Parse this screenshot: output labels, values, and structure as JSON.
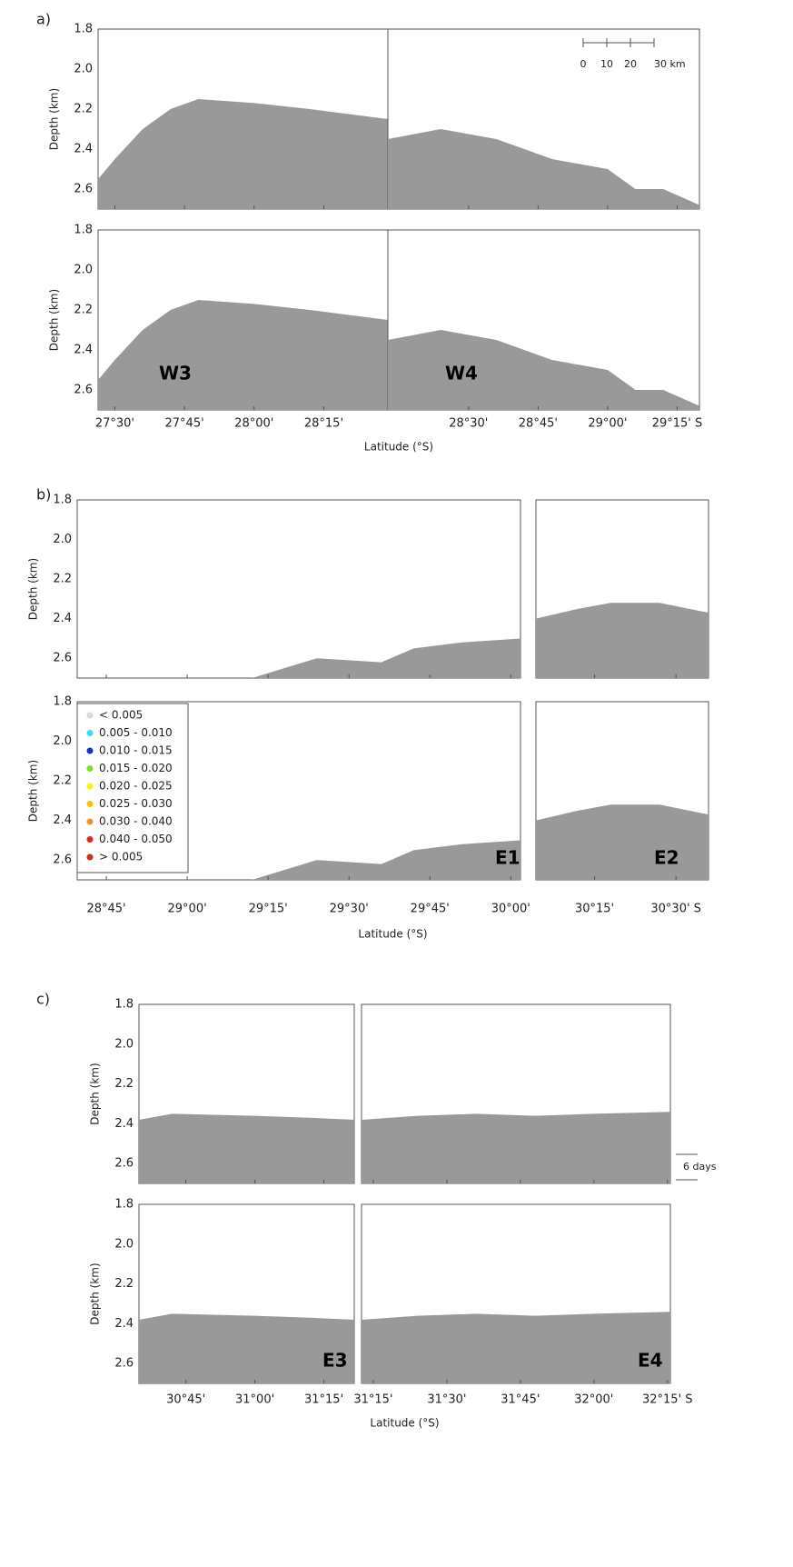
{
  "chart_data": [
    {
      "type": "area",
      "panel_label": "a)",
      "ylabel": "Depth (km)",
      "xlabel": "Latitude (°S)",
      "ylim": [
        1.8,
        2.7
      ],
      "y_inverted": true,
      "yticks": [
        1.8,
        {
          "value": 2,
          "label": "2.0"
        },
        2.2,
        2.4,
        2.6
      ],
      "seafloor_color": "#999999",
      "scale_bar": [
        "0",
        "10",
        "20",
        "30 km"
      ],
      "segments": [
        {
          "xlim": [
            27.44,
            28.48
          ],
          "xticks": [
            {
              "value": 27.5,
              "label": "27°30'"
            },
            {
              "value": 27.75,
              "label": "27°45'"
            },
            {
              "value": 28.0,
              "label": "28°00'"
            },
            {
              "value": 28.25,
              "label": "28°15'"
            }
          ],
          "seafloor_x": [
            27.44,
            27.5,
            27.6,
            27.7,
            27.8,
            28.0,
            28.2,
            28.48
          ],
          "seafloor_y": [
            2.55,
            2.45,
            2.3,
            2.2,
            2.15,
            2.17,
            2.2,
            2.25
          ],
          "track_label": "W3"
        },
        {
          "xlim": [
            28.21,
            29.33
          ],
          "xticks": [
            {
              "value": 28.5,
              "label": "28°30'"
            },
            {
              "value": 28.75,
              "label": "28°45'"
            },
            {
              "value": 29.0,
              "label": "29°00'"
            },
            {
              "value": 29.25,
              "label": "29°15' S"
            }
          ],
          "seafloor_x": [
            28.21,
            28.4,
            28.6,
            28.8,
            29.0,
            29.1,
            29.2,
            29.33
          ],
          "seafloor_y": [
            2.35,
            2.3,
            2.35,
            2.45,
            2.5,
            2.6,
            2.6,
            2.68
          ],
          "track_label": "W4"
        }
      ]
    },
    {
      "type": "area",
      "panel_label": "b)",
      "ylabel": "Depth (km)",
      "xlabel": "Latitude (°S)",
      "ylim": [
        1.8,
        2.7
      ],
      "y_inverted": true,
      "yticks": [
        1.8,
        {
          "value": 2,
          "label": "2.0"
        },
        2.2,
        2.4,
        2.6
      ],
      "seafloor_color": "#999999",
      "legend": {
        "entries": [
          "< 0.005",
          "0.005 - 0.010",
          "0.010 - 0.015",
          "0.015 - 0.020",
          "0.020 - 0.025",
          "0.025 - 0.030",
          "0.030 - 0.040",
          "0.040 - 0.050",
          "> 0.005"
        ],
        "colors": [
          "#d9d9d9",
          "#33e0f0",
          "#1a2bd0",
          "#80e020",
          "#f8f800",
          "#f8c000",
          "#f89030",
          "#e82020",
          "#c83010"
        ]
      },
      "segments": [
        {
          "xlim": [
            28.66,
            30.03
          ],
          "xticks": [
            {
              "value": 28.75,
              "label": "28°45'"
            },
            {
              "value": 29.0,
              "label": "29°00'"
            },
            {
              "value": 29.25,
              "label": "29°15'"
            },
            {
              "value": 29.5,
              "label": "29°30'"
            },
            {
              "value": 29.75,
              "label": "29°45'"
            },
            {
              "value": 30.0,
              "label": "30°00'"
            }
          ],
          "seafloor_x": [
            28.66,
            29.2,
            29.3,
            29.4,
            29.6,
            29.7,
            29.85,
            30.03
          ],
          "seafloor_y": [
            2.7,
            2.7,
            2.65,
            2.6,
            2.62,
            2.55,
            2.52,
            2.5
          ],
          "track_label": "E1"
        },
        {
          "xlim": [
            30.07,
            30.6
          ],
          "xticks": [
            {
              "value": 30.25,
              "label": "30°15'"
            },
            {
              "value": 30.5,
              "label": "30°30' S"
            }
          ],
          "seafloor_x": [
            30.07,
            30.2,
            30.3,
            30.45,
            30.6
          ],
          "seafloor_y": [
            2.4,
            2.35,
            2.32,
            2.32,
            2.37
          ],
          "track_label": "E2"
        }
      ]
    },
    {
      "type": "area",
      "panel_label": "c)",
      "ylabel": "Depth (km)",
      "xlabel": "Latitude (°S)",
      "ylim": [
        1.8,
        2.7
      ],
      "y_inverted": true,
      "yticks": [
        1.8,
        {
          "value": 2,
          "label": "2.0"
        },
        2.2,
        2.4,
        2.6
      ],
      "seafloor_color": "#999999",
      "annotation": "6 days",
      "segments": [
        {
          "xlim": [
            30.58,
            31.36
          ],
          "xticks": [
            {
              "value": 30.75,
              "label": "30°45'"
            },
            {
              "value": 31.0,
              "label": "31°00'"
            },
            {
              "value": 31.25,
              "label": "31°15'"
            }
          ],
          "seafloor_x": [
            30.58,
            30.7,
            31.0,
            31.2,
            31.36
          ],
          "seafloor_y": [
            2.38,
            2.35,
            2.36,
            2.37,
            2.38
          ],
          "track_label": "E3"
        },
        {
          "xlim": [
            31.21,
            32.26
          ],
          "xticks": [
            {
              "value": 31.25,
              "label": "31°15'"
            },
            {
              "value": 31.5,
              "label": "31°30'"
            },
            {
              "value": 31.75,
              "label": "31°45'"
            },
            {
              "value": 32.0,
              "label": "32°00'"
            },
            {
              "value": 32.25,
              "label": "32°15' S"
            }
          ],
          "seafloor_x": [
            31.21,
            31.4,
            31.6,
            31.8,
            32.0,
            32.26
          ],
          "seafloor_y": [
            2.38,
            2.36,
            2.35,
            2.36,
            2.35,
            2.34
          ],
          "track_label": "E4"
        }
      ]
    }
  ]
}
